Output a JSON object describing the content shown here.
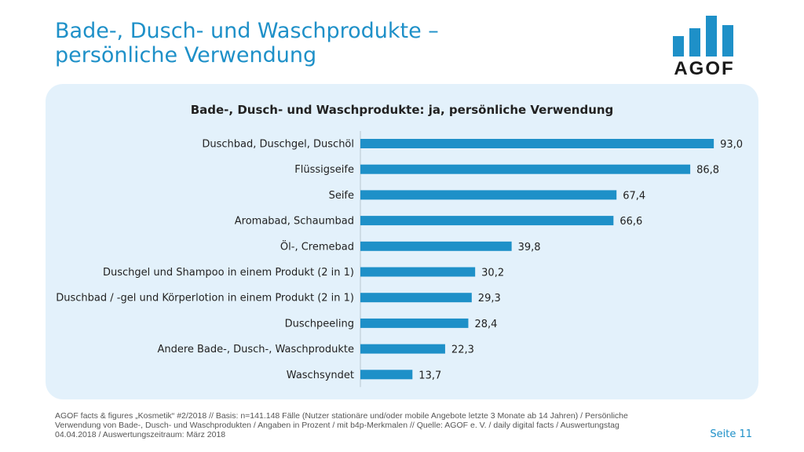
{
  "header": {
    "title_line1": "Bade-, Dusch- und Waschprodukte –",
    "title_line2": "persönliche Verwendung"
  },
  "logo": {
    "text": "AGOF",
    "bars_color": "#1e90c8",
    "text_color": "#1a1a1a"
  },
  "chart_data": {
    "type": "bar",
    "orientation": "horizontal",
    "title": "Bade-, Dusch- und Waschprodukte: ja, persönliche Verwendung",
    "categories": [
      "Duschbad, Duschgel, Duschöl",
      "Flüssigseife",
      "Seife",
      "Aromabad, Schaumbad",
      "Öl-, Cremebad",
      "Duschgel und Shampoo in einem Produkt (2 in 1)",
      "Duschbad / -gel und Körperlotion in einem Produkt (2 in 1)",
      "Duschpeeling",
      "Andere Bade-, Dusch-, Waschprodukte",
      "Waschsyndet"
    ],
    "values": [
      93.0,
      86.8,
      67.4,
      66.6,
      39.8,
      30.2,
      29.3,
      28.4,
      22.3,
      13.7
    ],
    "value_labels": [
      "93,0",
      "86,8",
      "67,4",
      "66,6",
      "39,8",
      "30,2",
      "29,3",
      "28,4",
      "22,3",
      "13,7"
    ],
    "xlim": [
      0,
      100
    ],
    "bar_color": "#1e90c8",
    "unit": "Prozent"
  },
  "footer": {
    "line1": "AGOF facts & figures „Kosmetik“ #2/2018 // Basis: n=141.148 Fälle (Nutzer stationäre und/oder mobile Angebote letzte 3 Monate ab 14 Jahren) / Persönliche",
    "line2": "Verwendung von Bade-, Dusch- und Waschprodukten / Angaben in Prozent / mit b4p-Merkmalen // Quelle: AGOF e. V. / daily digital facts / Auswertungstag",
    "line3": "04.04.2018 / Auswertungszeitraum: März 2018"
  },
  "page": {
    "label": "Seite 11"
  }
}
